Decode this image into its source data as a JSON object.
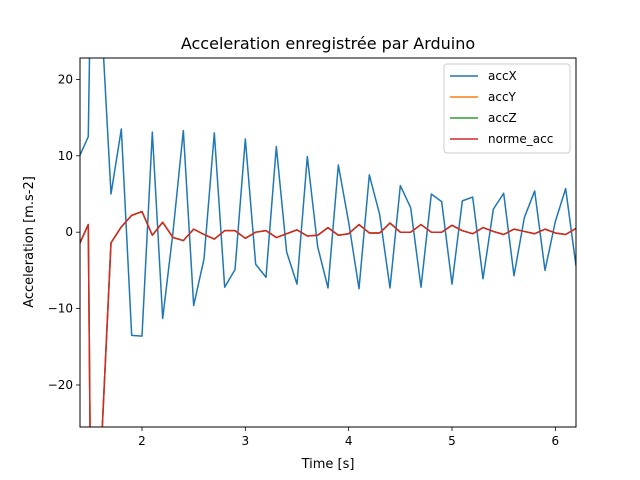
{
  "chart_data": {
    "type": "line",
    "title": "Acceleration enregistrée par Arduino",
    "xlabel": "Time [s]",
    "ylabel": "Acceleration [m.s-2]",
    "xlim": [
      1.4,
      6.2
    ],
    "ylim": [
      -25.5,
      22.8
    ],
    "xticks": [
      2,
      3,
      4,
      5,
      6
    ],
    "yticks": [
      -20,
      -10,
      0,
      10,
      20
    ],
    "xtick_labels": [
      "2",
      "3",
      "4",
      "5",
      "6"
    ],
    "ytick_labels": [
      "−20",
      "−10",
      "0",
      "10",
      "20"
    ],
    "grid": false,
    "legend_position": "top-right",
    "x": [
      1.4,
      1.48,
      1.5,
      1.6,
      1.7,
      1.8,
      1.9,
      2.0,
      2.1,
      2.2,
      2.3,
      2.4,
      2.5,
      2.6,
      2.7,
      2.8,
      2.9,
      3.0,
      3.1,
      3.2,
      3.3,
      3.4,
      3.5,
      3.6,
      3.7,
      3.8,
      3.9,
      4.0,
      4.1,
      4.2,
      4.3,
      4.4,
      4.5,
      4.6,
      4.7,
      4.8,
      4.9,
      5.0,
      5.1,
      5.2,
      5.3,
      5.4,
      5.5,
      5.6,
      5.7,
      5.8,
      5.9,
      6.0,
      6.1,
      6.2
    ],
    "series": [
      {
        "name": "accX",
        "color": "#1f77b4",
        "values": [
          10.1,
          12.5,
          30.0,
          30.0,
          5.0,
          13.5,
          -13.5,
          -13.6,
          13.1,
          -11.3,
          0.0,
          13.3,
          -9.6,
          -3.5,
          13.0,
          -7.2,
          -4.9,
          12.2,
          -4.2,
          -5.9,
          11.2,
          -2.6,
          -6.8,
          9.9,
          -1.9,
          -7.3,
          8.8,
          1.3,
          -7.4,
          7.5,
          2.3,
          -7.3,
          6.1,
          3.2,
          -7.2,
          5.0,
          4.0,
          -6.8,
          4.1,
          4.6,
          -6.1,
          3.0,
          5.1,
          -5.7,
          1.9,
          5.4,
          -5.0,
          1.4,
          5.7,
          -4.4
        ]
      },
      {
        "name": "accY",
        "color": "#ff7f0e",
        "values": [
          -1.4,
          1.0,
          -30.0,
          -30.0,
          -1.4,
          0.7,
          2.2,
          2.7,
          -0.4,
          1.3,
          -0.7,
          -1.1,
          0.4,
          -0.3,
          -0.9,
          0.2,
          0.2,
          -0.8,
          0.0,
          0.2,
          -0.7,
          -0.2,
          0.3,
          -0.5,
          -0.4,
          0.6,
          -0.4,
          -0.2,
          1.0,
          -0.1,
          -0.1,
          1.2,
          0.0,
          0.0,
          1.0,
          0.0,
          0.0,
          0.9,
          0.2,
          -0.2,
          0.6,
          0.1,
          -0.3,
          0.4,
          0.1,
          -0.2,
          0.4,
          -0.1,
          -0.3,
          0.5
        ]
      },
      {
        "name": "accZ",
        "color": "#2ca02c",
        "values": [
          -1.4,
          1.0,
          -30.0,
          -30.0,
          -1.4,
          0.7,
          2.2,
          2.7,
          -0.4,
          1.3,
          -0.7,
          -1.1,
          0.4,
          -0.3,
          -0.9,
          0.2,
          0.2,
          -0.8,
          0.0,
          0.2,
          -0.7,
          -0.2,
          0.3,
          -0.5,
          -0.4,
          0.6,
          -0.4,
          -0.2,
          1.0,
          -0.1,
          -0.1,
          1.2,
          0.0,
          0.0,
          1.0,
          0.0,
          0.0,
          0.9,
          0.2,
          -0.2,
          0.6,
          0.1,
          -0.3,
          0.4,
          0.1,
          -0.2,
          0.4,
          -0.1,
          -0.3,
          0.5
        ]
      },
      {
        "name": "norme_acc",
        "color": "#d62728",
        "values": [
          -1.4,
          1.0,
          -30.0,
          -30.0,
          -1.4,
          0.7,
          2.2,
          2.7,
          -0.4,
          1.3,
          -0.7,
          -1.1,
          0.4,
          -0.3,
          -0.9,
          0.2,
          0.2,
          -0.8,
          0.0,
          0.2,
          -0.7,
          -0.2,
          0.3,
          -0.5,
          -0.4,
          0.6,
          -0.4,
          -0.2,
          1.0,
          -0.1,
          -0.1,
          1.2,
          0.0,
          0.0,
          1.0,
          0.0,
          0.0,
          0.9,
          0.2,
          -0.2,
          0.6,
          0.1,
          -0.3,
          0.4,
          0.1,
          -0.2,
          0.4,
          -0.1,
          -0.3,
          0.5
        ]
      }
    ]
  }
}
